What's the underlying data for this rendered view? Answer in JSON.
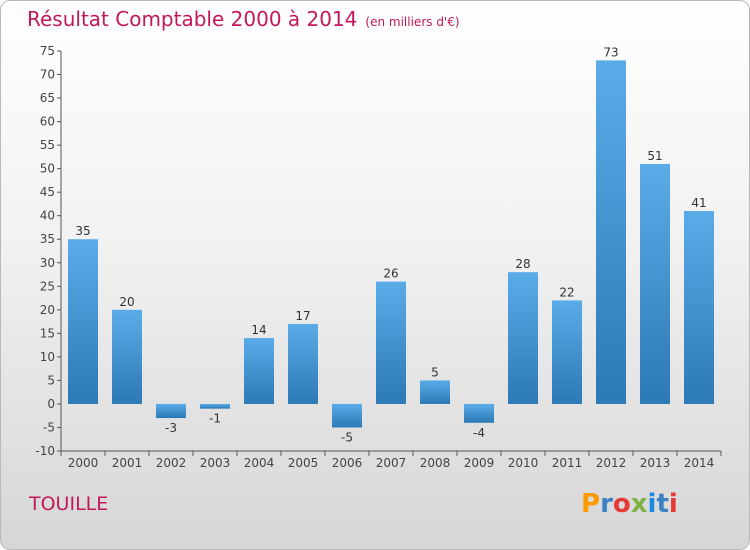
{
  "title": "Résultat Comptable 2000 à 2014",
  "subtitle": "(en milliers d'€)",
  "commune": "TOUILLE",
  "logo": {
    "text": "Proxiti",
    "colors": [
      "#ff9900",
      "#3b82c4",
      "#e53935",
      "#7cb342",
      "#1e88e5",
      "#3b82c4",
      "#e53935"
    ]
  },
  "colors": {
    "title": "#c2185b",
    "bar_top": "#5aace8",
    "bar_bottom": "#2b79b5",
    "axis": "#555555",
    "grid": "#cfcfcf"
  },
  "chart_data": {
    "type": "bar",
    "categories": [
      "2000",
      "2001",
      "2002",
      "2003",
      "2004",
      "2005",
      "2006",
      "2007",
      "2008",
      "2009",
      "2010",
      "2011",
      "2012",
      "2013",
      "2014"
    ],
    "values": [
      35,
      20,
      -3,
      -1,
      14,
      17,
      -5,
      26,
      5,
      -4,
      28,
      22,
      73,
      51,
      41
    ],
    "data_labels": [
      "35",
      "20",
      "-3",
      "-1",
      "14",
      "17",
      "-5",
      "26",
      "5",
      "-4",
      "28",
      "22",
      "73",
      "51",
      "41"
    ],
    "yticks": [
      -10,
      -5,
      0,
      5,
      10,
      15,
      20,
      25,
      30,
      35,
      40,
      45,
      50,
      55,
      60,
      65,
      70,
      75
    ],
    "ylim": [
      -10,
      75
    ],
    "grid": false
  }
}
